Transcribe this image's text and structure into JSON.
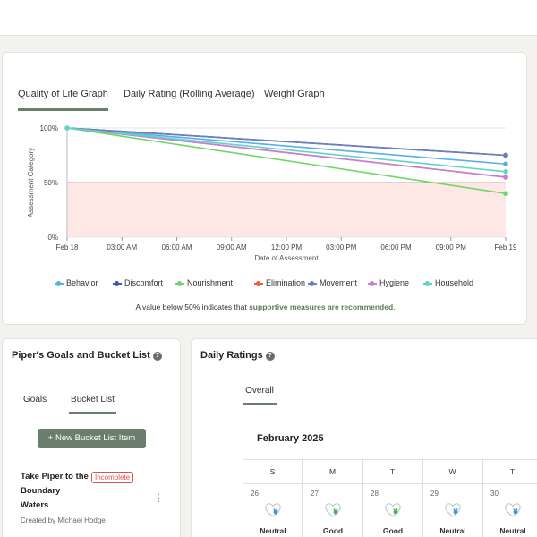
{
  "graph": {
    "tabs": [
      "Quality of Life Graph",
      "Daily Rating (Rolling Average)",
      "Weight Graph"
    ],
    "active_tab": 0,
    "note_prefix": "A value below 50% indicates that ",
    "note_emphasis": "supportive measures are recommended",
    "note_suffix": "."
  },
  "chart_data": {
    "type": "line",
    "xlabel": "Date of Assessment",
    "ylabel": "Assessment Category",
    "x_ticks": [
      "Feb 18",
      "03:00 AM",
      "06:00 AM",
      "09:00 AM",
      "12:00 PM",
      "03:00 PM",
      "06:00 PM",
      "09:00 PM",
      "Feb 19"
    ],
    "y_ticks": [
      "0%",
      "50%",
      "100%"
    ],
    "ylim": [
      0,
      100
    ],
    "threshold": 50,
    "threshold_band_color": "#fde8e6",
    "x": [
      "Feb 18",
      "Feb 19"
    ],
    "series": [
      {
        "name": "Behavior",
        "color": "#5aaee8",
        "values": [
          100,
          67
        ]
      },
      {
        "name": "Discomfort",
        "color": "#4a55b0",
        "values": [
          100,
          75
        ]
      },
      {
        "name": "Nourishment",
        "color": "#6fd66a",
        "values": [
          100,
          40
        ]
      },
      {
        "name": "Elimination",
        "color": "#e8603c",
        "values": [
          100,
          55
        ]
      },
      {
        "name": "Movement",
        "color": "#6b7fb8",
        "values": [
          100,
          75
        ]
      },
      {
        "name": "Hygiene",
        "color": "#c77de0",
        "values": [
          100,
          55
        ]
      },
      {
        "name": "Household",
        "color": "#5dd6c6",
        "values": [
          100,
          60
        ]
      }
    ]
  },
  "goals": {
    "title": "Piper's Goals and Bucket List",
    "help": "?",
    "tabs": [
      "Goals",
      "Bucket List"
    ],
    "new_button": "+ New Bucket List Item",
    "item": {
      "title": "Take Piper to the Boundary Waters",
      "status": "Incomplete",
      "menu": "⋮",
      "creator": "Created by Michael Hodge"
    }
  },
  "ratings": {
    "title": "Daily Ratings",
    "help": "?",
    "tab": "Overall",
    "month": "February 2025",
    "weekdays": [
      "S",
      "M",
      "T",
      "W",
      "T"
    ],
    "days": [
      {
        "num": "26",
        "label": "Neutral",
        "color": "#4a90d9"
      },
      {
        "num": "27",
        "label": "Good",
        "color": "#4caf50"
      },
      {
        "num": "28",
        "label": "Good",
        "color": "#4caf50"
      },
      {
        "num": "29",
        "label": "Neutral",
        "color": "#4a90d9"
      },
      {
        "num": "30",
        "label": "Neutral",
        "color": "#4a90d9"
      }
    ]
  }
}
